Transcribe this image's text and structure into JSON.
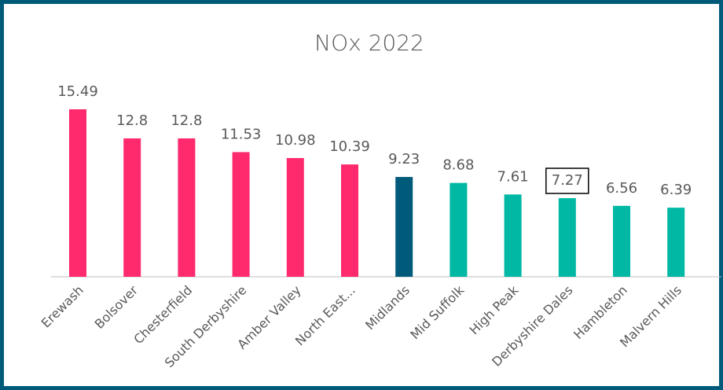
{
  "chart_data": {
    "type": "bar",
    "title": "NOx 2022",
    "categories": [
      "Erewash",
      "Bolsover",
      "Chesterfield",
      "South Derbyshire",
      "Amber Valley",
      "North East...",
      "Midlands",
      "Mid Suffolk",
      "High Peak",
      "Derbyshire Dales",
      "Hambleton",
      "Malvern Hills"
    ],
    "values": [
      15.49,
      12.8,
      12.8,
      11.53,
      10.98,
      10.39,
      9.23,
      8.68,
      7.61,
      7.27,
      6.56,
      6.39
    ],
    "colors": [
      "#ff2a6d",
      "#ff2a6d",
      "#ff2a6d",
      "#ff2a6d",
      "#ff2a6d",
      "#ff2a6d",
      "#005a7a",
      "#00b8a3",
      "#00b8a3",
      "#00b8a3",
      "#00b8a3",
      "#00b8a3"
    ],
    "highlight_index": 9
  }
}
